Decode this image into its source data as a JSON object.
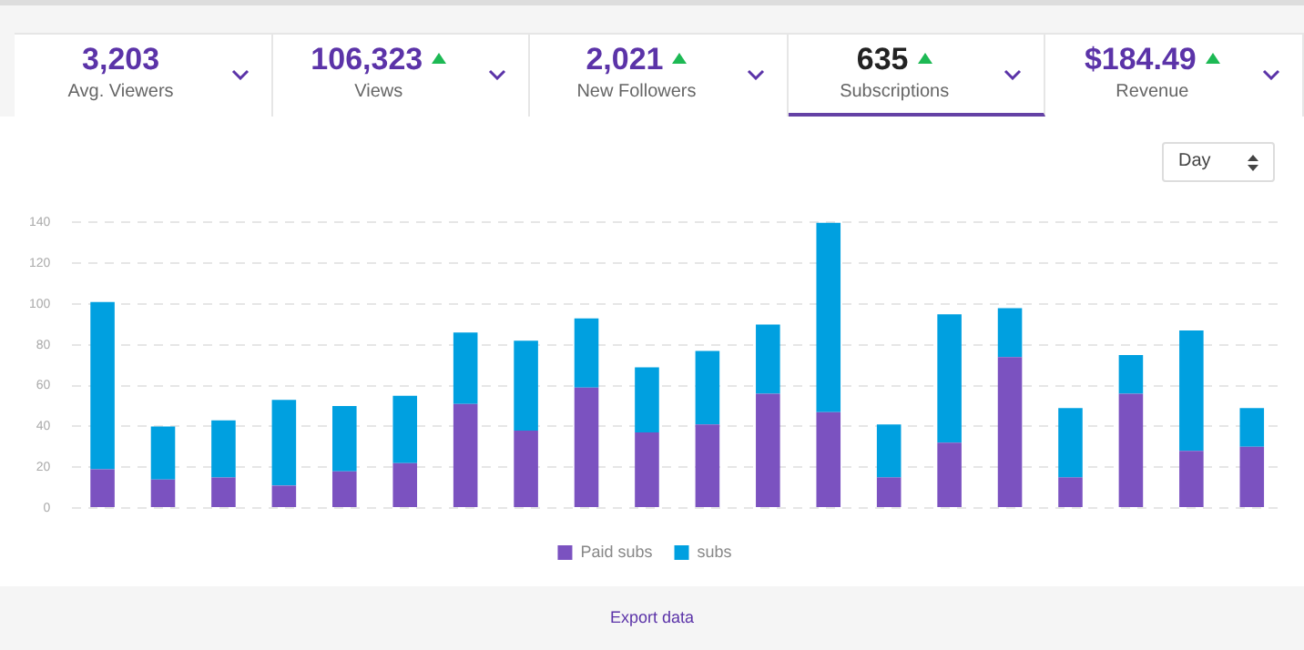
{
  "chart_data": [
    {
      "type": "other",
      "annotations": [
        "3,203",
        "Avg. Viewers",
        "106,323",
        "Views",
        "2,021",
        "New Followers",
        "635",
        "Subscriptions",
        "$184.49",
        "Revenue"
      ]
    },
    {
      "type": "bar",
      "stacked": true,
      "categories": [
        null,
        null,
        null,
        null,
        null,
        null,
        null,
        null,
        null,
        null,
        null,
        null,
        null,
        null,
        null,
        null,
        null,
        null,
        null,
        null
      ],
      "series": [
        {
          "name": "Paid subs",
          "color": "#7b52c0",
          "values": [
            19,
            14,
            15,
            11,
            18,
            22,
            51,
            38,
            59,
            37,
            41,
            56,
            47,
            15,
            32,
            74,
            15,
            56,
            28,
            30
          ]
        },
        {
          "name": "subs",
          "color": "#00a0e0",
          "values": [
            82,
            26,
            28,
            42,
            32,
            33,
            35,
            44,
            34,
            32,
            36,
            34,
            93,
            26,
            63,
            24,
            34,
            19,
            59,
            19
          ]
        }
      ],
      "ylim": [
        0,
        140
      ],
      "yticks": [
        0,
        20,
        40,
        60,
        80,
        100,
        120,
        140
      ],
      "grid": "y",
      "legend": "bottom",
      "tick_labels": "y",
      "annotations": [
        "Day",
        "Export data"
      ]
    }
  ]
}
